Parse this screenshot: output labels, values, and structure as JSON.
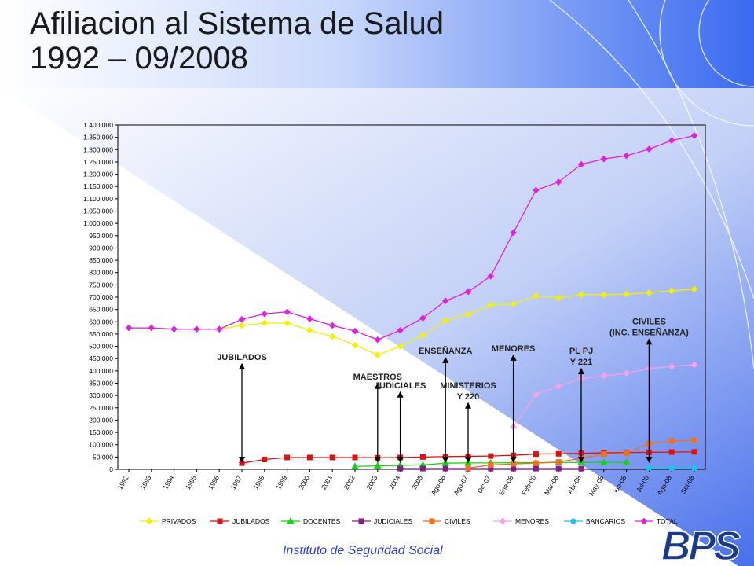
{
  "slide": {
    "title_line1": "Afiliacion al Sistema de Salud",
    "title_line2": "1992 – 09/2008",
    "footer": "Instituto de Seguridad Social",
    "logo_text": "BPS"
  },
  "chart_data": {
    "type": "line",
    "categories": [
      "1992",
      "1993",
      "1994",
      "1995",
      "1996",
      "1997",
      "1998",
      "1999",
      "2000",
      "2001",
      "2002",
      "2003",
      "2004",
      "2005",
      "Ago-06",
      "Ago-07",
      "Dic-07",
      "Ene-08",
      "Feb-08",
      "Mar-08",
      "Abr-08",
      "May-08",
      "Jun-08",
      "Jul-08",
      "Ago-08",
      "Set-08"
    ],
    "ylim": [
      0,
      1400000
    ],
    "ytick_step": 50000,
    "ytick_labels": [
      "0",
      "50.000",
      "100.000",
      "150.000",
      "200.000",
      "250.000",
      "300.000",
      "350.000",
      "400.000",
      "450.000",
      "500.000",
      "550.000",
      "600.000",
      "650.000",
      "700.000",
      "750.000",
      "800.000",
      "850.000",
      "900.000",
      "950.000",
      "1.000.000",
      "1.050.000",
      "1.100.000",
      "1.150.000",
      "1.200.000",
      "1.250.000",
      "1.300.000",
      "1.350.000",
      "1.400.000"
    ],
    "legend_position": "bottom",
    "series": [
      {
        "name": "PRIVADOS",
        "color": "#f2f200",
        "marker": "diamond",
        "values": [
          575000,
          575000,
          570000,
          570000,
          570000,
          585000,
          595000,
          595000,
          565000,
          540000,
          505000,
          465000,
          500000,
          545000,
          605000,
          630000,
          668000,
          672000,
          705000,
          697000,
          710000,
          710000,
          712000,
          718000,
          725000,
          733000
        ]
      },
      {
        "name": "JUBILADOS",
        "color": "#e01010",
        "marker": "square",
        "values": [
          null,
          null,
          null,
          null,
          null,
          25000,
          40000,
          48000,
          48000,
          48000,
          48000,
          47000,
          48000,
          50000,
          52000,
          53000,
          54000,
          57000,
          62000,
          63000,
          65000,
          67000,
          68000,
          69000,
          70000,
          71000
        ]
      },
      {
        "name": "DOCENTES",
        "color": "#18d018",
        "marker": "triangle",
        "values": [
          null,
          null,
          null,
          null,
          null,
          null,
          null,
          null,
          null,
          null,
          12000,
          14000,
          16000,
          18000,
          25000,
          26000,
          26000,
          27000,
          27000,
          28000,
          28000,
          28000,
          28000,
          null,
          null,
          null
        ]
      },
      {
        "name": "JUDICIALES",
        "color": "#8a1a8a",
        "marker": "square",
        "values": [
          null,
          null,
          null,
          null,
          null,
          null,
          null,
          null,
          null,
          null,
          null,
          null,
          3000,
          3000,
          3000,
          3000,
          3000,
          3000,
          3000,
          3000,
          3000,
          null,
          null,
          null,
          null,
          null
        ]
      },
      {
        "name": "CIVILES",
        "color": "#f07020",
        "marker": "square",
        "values": [
          null,
          null,
          null,
          null,
          null,
          null,
          null,
          null,
          null,
          null,
          null,
          null,
          null,
          null,
          null,
          5000,
          18000,
          22000,
          25000,
          30000,
          45000,
          62000,
          65000,
          105000,
          115000,
          118000
        ]
      },
      {
        "name": "MENORES",
        "color": "#f8a0e8",
        "marker": "diamond",
        "values": [
          null,
          null,
          null,
          null,
          null,
          null,
          null,
          null,
          null,
          null,
          null,
          null,
          null,
          null,
          null,
          null,
          null,
          172000,
          305000,
          338000,
          368000,
          380000,
          390000,
          410000,
          418000,
          425000
        ]
      },
      {
        "name": "BANCARIOS",
        "color": "#10c8f0",
        "marker": "circle",
        "values": [
          null,
          null,
          null,
          null,
          null,
          null,
          null,
          null,
          null,
          null,
          null,
          null,
          null,
          null,
          null,
          null,
          null,
          null,
          null,
          null,
          null,
          null,
          null,
          5000,
          5000,
          5000
        ]
      },
      {
        "name": "TOTAL",
        "color": "#e020e0",
        "marker": "diamond",
        "values": [
          575000,
          575000,
          570000,
          570000,
          570000,
          610000,
          632000,
          640000,
          612000,
          585000,
          562000,
          527000,
          565000,
          615000,
          685000,
          722000,
          785000,
          962000,
          1135000,
          1168000,
          1240000,
          1262000,
          1275000,
          1302000,
          1337000,
          1357000
        ]
      }
    ],
    "annotations": [
      {
        "lines": [
          "JUBILADOS"
        ],
        "category": "1997",
        "label_y": 445000
      },
      {
        "lines": [
          "MAESTROS"
        ],
        "category": "2003",
        "label_y": 365000
      },
      {
        "lines": [
          "JUDICIALES"
        ],
        "category": "2004",
        "label_y": 330000
      },
      {
        "lines": [
          "ENSEÑANZA"
        ],
        "category": "Ago-06",
        "label_y": 470000
      },
      {
        "lines": [
          "MINISTERIOS",
          "Y 220"
        ],
        "category": "Ago-07",
        "label_y": 330000
      },
      {
        "lines": [
          "MENORES"
        ],
        "category": "Ene-08",
        "label_y": 480000
      },
      {
        "lines": [
          "PL PJ",
          "Y 221"
        ],
        "category": "Abr-08",
        "label_y": 470000
      },
      {
        "lines": [
          "CIVILES",
          "(INC. ENSEÑANZA)"
        ],
        "category": "Jul-08",
        "label_y": 590000
      }
    ]
  }
}
